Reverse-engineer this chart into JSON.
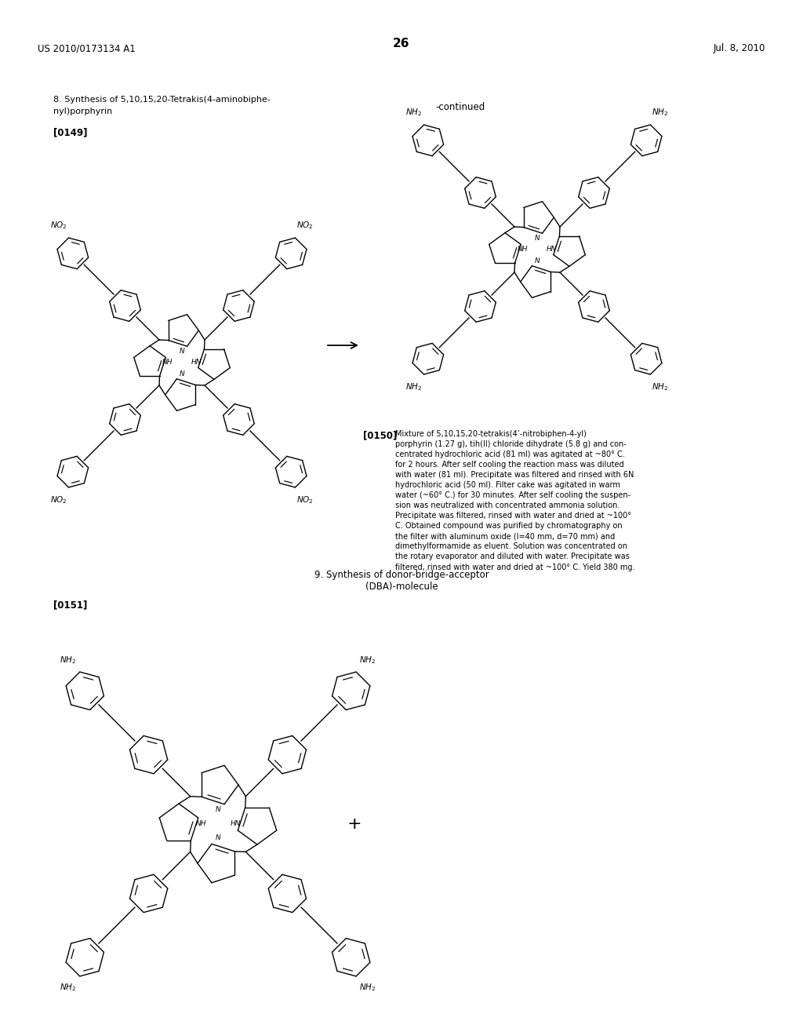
{
  "bg_color": "#ffffff",
  "header_left": "US 2010/0173134 A1",
  "header_right": "Jul. 8, 2010",
  "page_number": "26",
  "section8_line1": "8. Synthesis of 5,10,15,20-Tetrakis(4-aminobiphe-",
  "section8_line2": "nyl)porphyrin",
  "ref0149": "[0149]",
  "continued": "-continued",
  "ref0150": "[0150]",
  "ref0150_body": "Mixture of 5,10,15,20-tetrakis(4’-nitrobiphen-4-yl)\nporphyrin (1.27 g), tih(II) chloride dihydrate (5.8 g) and con-\ncentrated hydrochloric acid (81 ml) was agitated at ~80° C.\nfor 2 hours. After self cooling the reaction mass was diluted\nwith water (81 ml). Precipitate was filtered and rinsed with 6N\nhydrochloric acid (50 ml). Filter cake was agitated in warm\nwater (~60° C.) for 30 minutes. After self cooling the suspen-\nsion was neutralized with concentrated ammonia solution.\nPrecipitate was filtered, rinsed with water and dried at ~100°\nC. Obtained compound was purified by chromatography on\nthe filter with aluminum oxide (l=40 mm, d=70 mm) and\ndimethylformamide as eluent. Solution was concentrated on\nthe rotary evaporator and diluted with water. Precipitate was\nfiltered, rinsed with water and dried at ~100° C. Yield 380 mg.",
  "section9_line1": "9. Synthesis of donor-bridge-acceptor",
  "section9_line2": "(DBA)-molecule",
  "ref0151": "[0151]"
}
